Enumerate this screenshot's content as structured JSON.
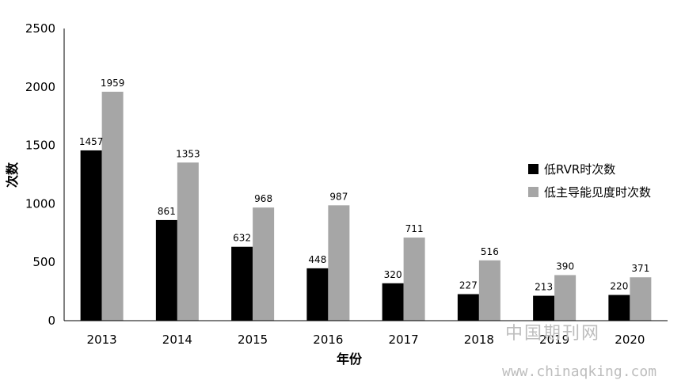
{
  "chart_data": {
    "type": "bar",
    "categories": [
      "2013",
      "2014",
      "2015",
      "2016",
      "2017",
      "2018",
      "2019",
      "2020"
    ],
    "series": [
      {
        "name": "低RVR时次数",
        "values": [
          1457,
          861,
          632,
          448,
          320,
          227,
          213,
          220
        ],
        "color": "#000000"
      },
      {
        "name": "低主导能见度时次数",
        "values": [
          1959,
          1353,
          968,
          987,
          711,
          516,
          390,
          371
        ],
        "color": "#a6a6a6"
      }
    ],
    "xlabel": "年份",
    "ylabel": "次数",
    "ylim": [
      0,
      2500
    ],
    "yticks": [
      "0",
      "500",
      "1000",
      "1500",
      "2000",
      "2500"
    ],
    "grid": false,
    "legend": "right"
  },
  "watermark": {
    "line1": "中国期刊网",
    "line2": "www.chinaqking.com"
  }
}
